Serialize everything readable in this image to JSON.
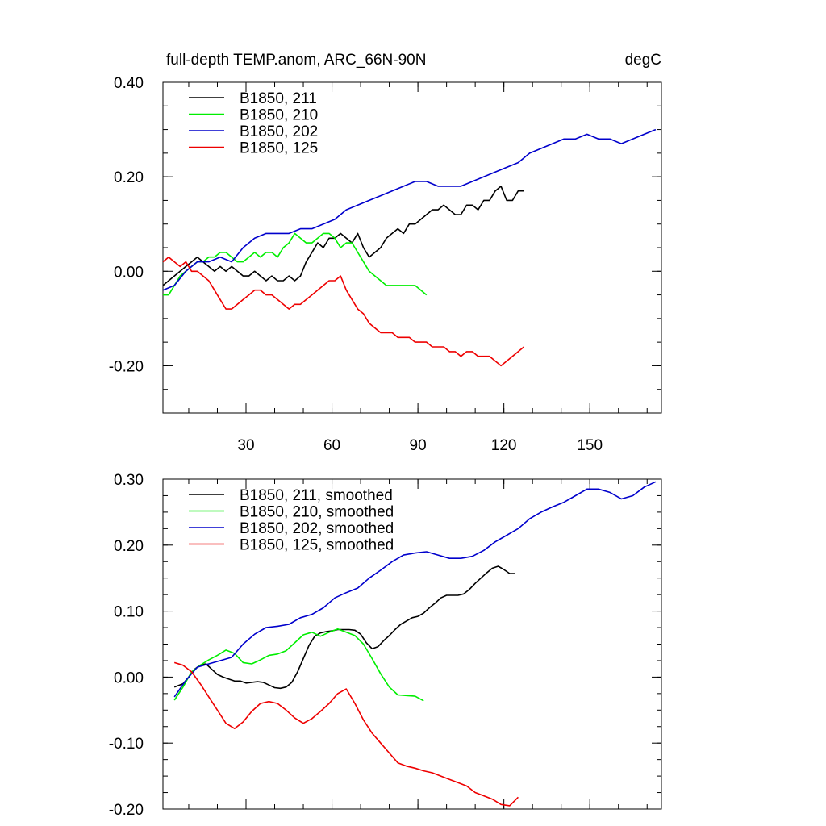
{
  "chart_data": [
    {
      "type": "line",
      "title": "full-depth TEMP.anom, ARC_66N-90N",
      "units": "degC",
      "xlim": [
        1,
        175
      ],
      "ylim": [
        -0.3,
        0.4
      ],
      "yticks": [
        0.4,
        0.2,
        0.0,
        -0.2
      ],
      "ytick_labels": [
        "0.40",
        "0.20",
        "0.00",
        "-0.20"
      ],
      "xticks": [
        30,
        60,
        90,
        120,
        150
      ],
      "xtick_labels": [
        "30",
        "60",
        "90",
        "120",
        "150"
      ],
      "legend_position": "top-left",
      "series": [
        {
          "name": "B1850, 211",
          "color": "#000000",
          "x": [
            1,
            3,
            5,
            7,
            9,
            11,
            13,
            15,
            17,
            19,
            21,
            23,
            25,
            27,
            29,
            31,
            33,
            35,
            37,
            39,
            41,
            43,
            45,
            47,
            49,
            51,
            53,
            55,
            57,
            59,
            61,
            63,
            65,
            67,
            69,
            71,
            73,
            75,
            77,
            79,
            81,
            83,
            85,
            87,
            89,
            91,
            93,
            95,
            97,
            99,
            101,
            103,
            105,
            107,
            109,
            111,
            113,
            115,
            117,
            119,
            121,
            123,
            125,
            127
          ],
          "y": [
            -0.03,
            -0.02,
            -0.01,
            0.0,
            0.01,
            0.02,
            0.03,
            0.02,
            0.01,
            0.0,
            0.01,
            0.0,
            0.01,
            0.0,
            -0.01,
            -0.01,
            0.0,
            -0.01,
            -0.02,
            -0.01,
            -0.02,
            -0.02,
            -0.01,
            -0.02,
            -0.01,
            0.02,
            0.04,
            0.06,
            0.05,
            0.07,
            0.07,
            0.08,
            0.07,
            0.06,
            0.08,
            0.05,
            0.03,
            0.04,
            0.05,
            0.07,
            0.08,
            0.09,
            0.08,
            0.1,
            0.1,
            0.11,
            0.12,
            0.13,
            0.13,
            0.14,
            0.13,
            0.12,
            0.12,
            0.14,
            0.14,
            0.13,
            0.15,
            0.15,
            0.17,
            0.18,
            0.15,
            0.15,
            0.17,
            0.17
          ]
        },
        {
          "name": "B1850, 210",
          "color": "#00ee00",
          "x": [
            1,
            3,
            5,
            7,
            9,
            11,
            13,
            15,
            17,
            19,
            21,
            23,
            25,
            27,
            29,
            31,
            33,
            35,
            37,
            39,
            41,
            43,
            45,
            47,
            49,
            51,
            53,
            55,
            57,
            59,
            61,
            63,
            65,
            67,
            69,
            71,
            73,
            75,
            77,
            79,
            81,
            83,
            85,
            87,
            89,
            91,
            93
          ],
          "y": [
            -0.05,
            -0.05,
            -0.03,
            -0.01,
            0.0,
            0.01,
            0.02,
            0.02,
            0.03,
            0.03,
            0.04,
            0.04,
            0.03,
            0.02,
            0.02,
            0.03,
            0.04,
            0.03,
            0.04,
            0.04,
            0.03,
            0.05,
            0.06,
            0.08,
            0.07,
            0.06,
            0.06,
            0.07,
            0.08,
            0.08,
            0.07,
            0.05,
            0.06,
            0.06,
            0.04,
            0.02,
            0.0,
            -0.01,
            -0.02,
            -0.03,
            -0.03,
            -0.03,
            -0.03,
            -0.03,
            -0.03,
            -0.04,
            -0.05
          ]
        },
        {
          "name": "B1850, 202",
          "color": "#0000cc",
          "x": [
            1,
            5,
            9,
            13,
            17,
            21,
            25,
            29,
            33,
            37,
            41,
            45,
            49,
            53,
            57,
            61,
            65,
            69,
            73,
            77,
            81,
            85,
            89,
            93,
            97,
            101,
            105,
            109,
            113,
            117,
            121,
            125,
            129,
            133,
            137,
            141,
            145,
            149,
            153,
            157,
            161,
            165,
            169,
            173
          ],
          "y": [
            -0.04,
            -0.03,
            0.0,
            0.02,
            0.02,
            0.03,
            0.02,
            0.05,
            0.07,
            0.08,
            0.08,
            0.08,
            0.09,
            0.09,
            0.1,
            0.11,
            0.13,
            0.14,
            0.15,
            0.16,
            0.17,
            0.18,
            0.19,
            0.19,
            0.18,
            0.18,
            0.18,
            0.19,
            0.2,
            0.21,
            0.22,
            0.23,
            0.25,
            0.26,
            0.27,
            0.28,
            0.28,
            0.29,
            0.28,
            0.28,
            0.27,
            0.28,
            0.29,
            0.3
          ]
        },
        {
          "name": "B1850, 125",
          "color": "#ee0000",
          "x": [
            1,
            3,
            5,
            7,
            9,
            11,
            13,
            15,
            17,
            19,
            21,
            23,
            25,
            27,
            29,
            31,
            33,
            35,
            37,
            39,
            41,
            43,
            45,
            47,
            49,
            51,
            53,
            55,
            57,
            59,
            61,
            63,
            65,
            67,
            69,
            71,
            73,
            75,
            77,
            79,
            81,
            83,
            85,
            87,
            89,
            91,
            93,
            95,
            97,
            99,
            101,
            103,
            105,
            107,
            109,
            111,
            113,
            115,
            117,
            119,
            121,
            123,
            125,
            127
          ],
          "y": [
            0.02,
            0.03,
            0.02,
            0.01,
            0.02,
            0.0,
            0.0,
            -0.01,
            -0.02,
            -0.04,
            -0.06,
            -0.08,
            -0.08,
            -0.07,
            -0.06,
            -0.05,
            -0.04,
            -0.04,
            -0.05,
            -0.05,
            -0.06,
            -0.07,
            -0.08,
            -0.07,
            -0.07,
            -0.06,
            -0.05,
            -0.04,
            -0.03,
            -0.02,
            -0.02,
            -0.01,
            -0.04,
            -0.06,
            -0.08,
            -0.09,
            -0.11,
            -0.12,
            -0.13,
            -0.13,
            -0.13,
            -0.14,
            -0.14,
            -0.14,
            -0.15,
            -0.15,
            -0.15,
            -0.16,
            -0.16,
            -0.16,
            -0.17,
            -0.17,
            -0.18,
            -0.17,
            -0.17,
            -0.18,
            -0.18,
            -0.18,
            -0.19,
            -0.2,
            -0.19,
            -0.18,
            -0.17,
            -0.16
          ]
        }
      ]
    },
    {
      "type": "line",
      "xlim": [
        1,
        175
      ],
      "ylim": [
        -0.2,
        0.3
      ],
      "yticks": [
        0.3,
        0.2,
        0.1,
        0.0,
        -0.1,
        -0.2
      ],
      "ytick_labels": [
        "0.30",
        "0.20",
        "0.10",
        "0.00",
        "-0.10",
        "-0.20"
      ],
      "xticks": [
        30,
        60,
        90,
        120,
        150
      ],
      "legend_position": "top-left",
      "series": [
        {
          "name": "B1850, 211, smoothed",
          "color": "#000000",
          "x": [
            5,
            8,
            10,
            12,
            14,
            16,
            18,
            20,
            22,
            24,
            26,
            28,
            30,
            32,
            34,
            36,
            38,
            40,
            42,
            44,
            46,
            48,
            50,
            52,
            54,
            56,
            58,
            60,
            62,
            64,
            66,
            68,
            70,
            72,
            74,
            76,
            78,
            80,
            82,
            84,
            86,
            88,
            90,
            92,
            94,
            96,
            98,
            100,
            102,
            104,
            106,
            108,
            110,
            112,
            114,
            116,
            118,
            120,
            122,
            124
          ],
          "y": [
            -0.015,
            -0.01,
            0.0,
            0.012,
            0.018,
            0.02,
            0.012,
            0.004,
            0.0,
            -0.003,
            -0.006,
            -0.006,
            -0.009,
            -0.008,
            -0.007,
            -0.008,
            -0.012,
            -0.016,
            -0.017,
            -0.015,
            -0.008,
            0.008,
            0.028,
            0.048,
            0.062,
            0.067,
            0.069,
            0.07,
            0.072,
            0.072,
            0.072,
            0.071,
            0.065,
            0.052,
            0.043,
            0.046,
            0.055,
            0.063,
            0.072,
            0.08,
            0.085,
            0.09,
            0.092,
            0.097,
            0.105,
            0.112,
            0.12,
            0.124,
            0.124,
            0.124,
            0.126,
            0.133,
            0.142,
            0.15,
            0.158,
            0.165,
            0.168,
            0.163,
            0.157,
            0.157
          ]
        },
        {
          "name": "B1850, 210, smoothed",
          "color": "#00ee00",
          "x": [
            5,
            8,
            11,
            14,
            17,
            20,
            23,
            26,
            29,
            32,
            35,
            38,
            41,
            44,
            47,
            50,
            53,
            56,
            59,
            62,
            65,
            68,
            71,
            74,
            77,
            80,
            83,
            86,
            89,
            92
          ],
          "y": [
            -0.035,
            -0.015,
            0.008,
            0.018,
            0.026,
            0.033,
            0.041,
            0.036,
            0.022,
            0.02,
            0.026,
            0.033,
            0.035,
            0.04,
            0.052,
            0.064,
            0.068,
            0.062,
            0.068,
            0.073,
            0.068,
            0.063,
            0.05,
            0.028,
            0.005,
            -0.015,
            -0.027,
            -0.028,
            -0.029,
            -0.036
          ]
        },
        {
          "name": "B1850, 202, smoothed",
          "color": "#0000cc",
          "x": [
            5,
            9,
            13,
            17,
            21,
            25,
            29,
            33,
            37,
            41,
            45,
            49,
            53,
            57,
            61,
            65,
            69,
            73,
            77,
            81,
            85,
            89,
            93,
            97,
            101,
            105,
            109,
            113,
            117,
            121,
            125,
            129,
            133,
            137,
            141,
            145,
            149,
            153,
            157,
            161,
            165,
            169,
            173
          ],
          "y": [
            -0.03,
            -0.005,
            0.015,
            0.02,
            0.025,
            0.03,
            0.05,
            0.065,
            0.075,
            0.077,
            0.08,
            0.09,
            0.095,
            0.105,
            0.12,
            0.128,
            0.135,
            0.15,
            0.162,
            0.175,
            0.185,
            0.188,
            0.19,
            0.185,
            0.18,
            0.18,
            0.183,
            0.192,
            0.205,
            0.215,
            0.225,
            0.24,
            0.25,
            0.258,
            0.265,
            0.275,
            0.285,
            0.285,
            0.28,
            0.27,
            0.275,
            0.288,
            0.296
          ]
        },
        {
          "name": "B1850, 125, smoothed",
          "color": "#ee0000",
          "x": [
            5,
            8,
            11,
            14,
            17,
            20,
            23,
            26,
            29,
            32,
            35,
            38,
            41,
            44,
            47,
            50,
            53,
            56,
            59,
            62,
            65,
            68,
            71,
            74,
            77,
            80,
            83,
            86,
            89,
            92,
            95,
            98,
            101,
            104,
            107,
            110,
            113,
            116,
            119,
            122,
            125
          ],
          "y": [
            0.022,
            0.018,
            0.008,
            -0.01,
            -0.03,
            -0.05,
            -0.07,
            -0.078,
            -0.068,
            -0.052,
            -0.04,
            -0.037,
            -0.04,
            -0.05,
            -0.062,
            -0.07,
            -0.063,
            -0.052,
            -0.04,
            -0.025,
            -0.018,
            -0.04,
            -0.065,
            -0.085,
            -0.1,
            -0.115,
            -0.13,
            -0.135,
            -0.138,
            -0.142,
            -0.145,
            -0.15,
            -0.155,
            -0.16,
            -0.165,
            -0.175,
            -0.18,
            -0.185,
            -0.193,
            -0.195,
            -0.182
          ]
        }
      ]
    }
  ]
}
